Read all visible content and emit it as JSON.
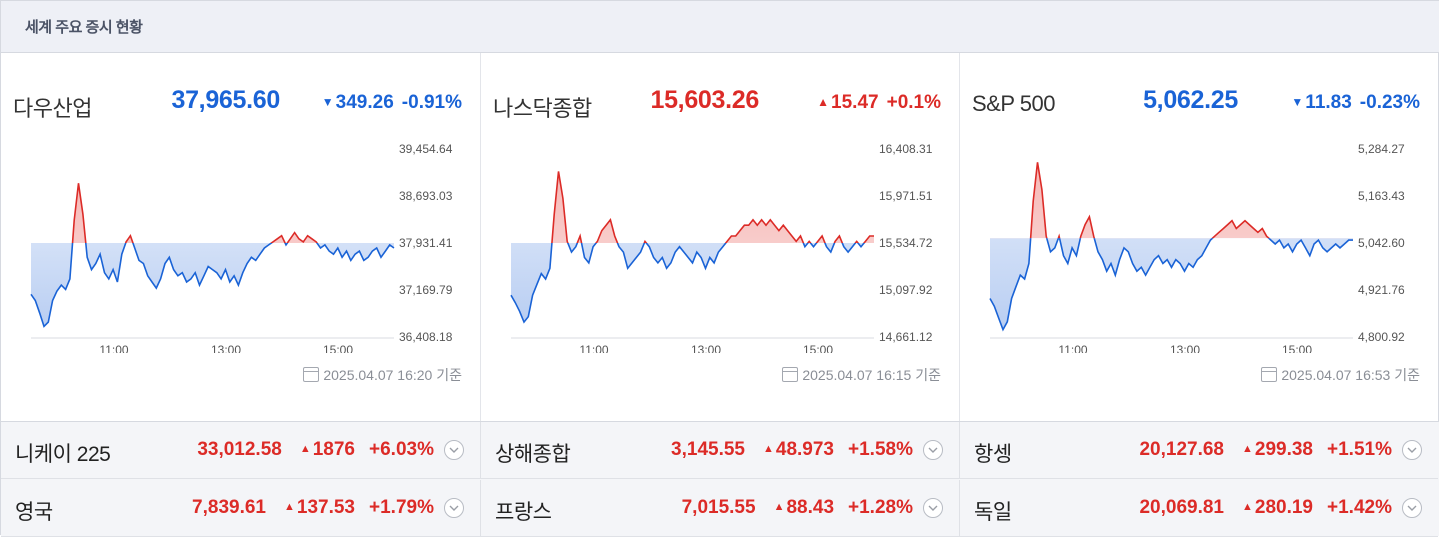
{
  "header": {
    "title": "세계 주요 증시 현황"
  },
  "indices": [
    {
      "name": "다우산업",
      "value": "37,965.60",
      "direction": "down",
      "change": "349.26",
      "pct": "-0.91%",
      "asof": "2025.04.07 16:20 기준",
      "chart_data": {
        "type": "line",
        "y_ticks": [
          "39,454.64",
          "38,693.03",
          "37,931.41",
          "37,169.79",
          "36,408.18"
        ],
        "ylim": [
          36408.18,
          39454.64
        ],
        "x_ticks": [
          "11:00",
          "13:00",
          "15:00"
        ],
        "baseline": 37931.41,
        "values": [
          37100,
          37000,
          36800,
          36580,
          36650,
          37000,
          37150,
          37250,
          37180,
          37350,
          38300,
          38900,
          38400,
          37700,
          37500,
          37600,
          37750,
          37450,
          37350,
          37500,
          37300,
          37750,
          37950,
          38050,
          37850,
          37650,
          37600,
          37400,
          37300,
          37200,
          37350,
          37600,
          37700,
          37500,
          37400,
          37450,
          37300,
          37350,
          37450,
          37250,
          37400,
          37550,
          37500,
          37450,
          37350,
          37500,
          37300,
          37400,
          37250,
          37450,
          37600,
          37700,
          37650,
          37750,
          37850,
          37900,
          37950,
          38000,
          38050,
          37900,
          38000,
          38100,
          38000,
          37950,
          38050,
          38000,
          37950,
          37850,
          37900,
          37800,
          37750,
          37850,
          37700,
          37800,
          37650,
          37750,
          37800,
          37650,
          37700,
          37800,
          37850,
          37700,
          37800,
          37900,
          37850
        ]
      },
      "color": "#1a63d6"
    },
    {
      "name": "나스닥종합",
      "value": "15,603.26",
      "direction": "up",
      "change": "15.47",
      "pct": "+0.1%",
      "asof": "2025.04.07 16:15 기준",
      "chart_data": {
        "type": "line",
        "y_ticks": [
          "16,408.31",
          "15,971.51",
          "15,534.72",
          "15,097.92",
          "14,661.12"
        ],
        "ylim": [
          14661.12,
          16408.31
        ],
        "x_ticks": [
          "11:00",
          "13:00",
          "15:00"
        ],
        "baseline": 15534.72,
        "values": [
          15050,
          14980,
          14900,
          14800,
          14850,
          15050,
          15150,
          15250,
          15200,
          15300,
          15800,
          16200,
          15950,
          15550,
          15450,
          15500,
          15600,
          15400,
          15350,
          15500,
          15550,
          15650,
          15700,
          15750,
          15600,
          15500,
          15450,
          15300,
          15350,
          15400,
          15450,
          15550,
          15500,
          15400,
          15350,
          15400,
          15300,
          15350,
          15450,
          15500,
          15450,
          15400,
          15350,
          15450,
          15400,
          15300,
          15400,
          15350,
          15450,
          15500,
          15550,
          15600,
          15600,
          15650,
          15700,
          15700,
          15750,
          15700,
          15750,
          15700,
          15750,
          15700,
          15650,
          15700,
          15650,
          15600,
          15550,
          15600,
          15500,
          15550,
          15500,
          15550,
          15600,
          15500,
          15450,
          15550,
          15600,
          15500,
          15450,
          15500,
          15550,
          15500,
          15550,
          15600,
          15600
        ]
      },
      "color": "#1a63d6"
    },
    {
      "name": "S&P 500",
      "value": "5,062.25",
      "direction": "down",
      "change": "11.83",
      "pct": "-0.23%",
      "asof": "2025.04.07 16:53 기준",
      "chart_data": {
        "type": "line",
        "y_ticks": [
          "5,284.27",
          "5,163.43",
          "5,042.60",
          "4,921.76",
          "4,800.92"
        ],
        "ylim": [
          4800.92,
          5284.27
        ],
        "x_ticks": [
          "11:00",
          "13:00",
          "15:00"
        ],
        "baseline": 5055.0,
        "values": [
          4900,
          4880,
          4850,
          4820,
          4840,
          4900,
          4930,
          4960,
          4950,
          4990,
          5150,
          5250,
          5180,
          5060,
          5020,
          5030,
          5060,
          5010,
          4990,
          5030,
          5010,
          5060,
          5090,
          5110,
          5060,
          5020,
          5000,
          4970,
          4990,
          4960,
          5000,
          5030,
          5020,
          4990,
          4970,
          4980,
          4960,
          4980,
          5000,
          5010,
          4990,
          5000,
          4980,
          5000,
          4990,
          4970,
          4990,
          4980,
          5000,
          5010,
          5030,
          5050,
          5060,
          5070,
          5080,
          5090,
          5100,
          5080,
          5090,
          5100,
          5090,
          5080,
          5070,
          5080,
          5060,
          5050,
          5040,
          5050,
          5030,
          5040,
          5020,
          5040,
          5050,
          5030,
          5010,
          5040,
          5050,
          5030,
          5020,
          5030,
          5040,
          5030,
          5040,
          5050,
          5050
        ]
      },
      "color": "#1a63d6"
    }
  ],
  "mini": [
    {
      "name": "니케이 225",
      "value": "33,012.58",
      "change": "1876",
      "pct": "+6.03%",
      "direction": "up"
    },
    {
      "name": "상해종합",
      "value": "3,145.55",
      "change": "48.973",
      "pct": "+1.58%",
      "direction": "up"
    },
    {
      "name": "항셍",
      "value": "20,127.68",
      "change": "299.38",
      "pct": "+1.51%",
      "direction": "up"
    },
    {
      "name": "영국",
      "value": "7,839.61",
      "change": "137.53",
      "pct": "+1.79%",
      "direction": "up"
    },
    {
      "name": "프랑스",
      "value": "7,015.55",
      "change": "88.43",
      "pct": "+1.28%",
      "direction": "up"
    },
    {
      "name": "독일",
      "value": "20,069.81",
      "change": "280.19",
      "pct": "+1.42%",
      "direction": "up"
    }
  ],
  "colors": {
    "up": "#dc2b27",
    "down": "#1a63d6",
    "fill_down": "#b9cef2",
    "fill_up": "#f6b7b5"
  }
}
